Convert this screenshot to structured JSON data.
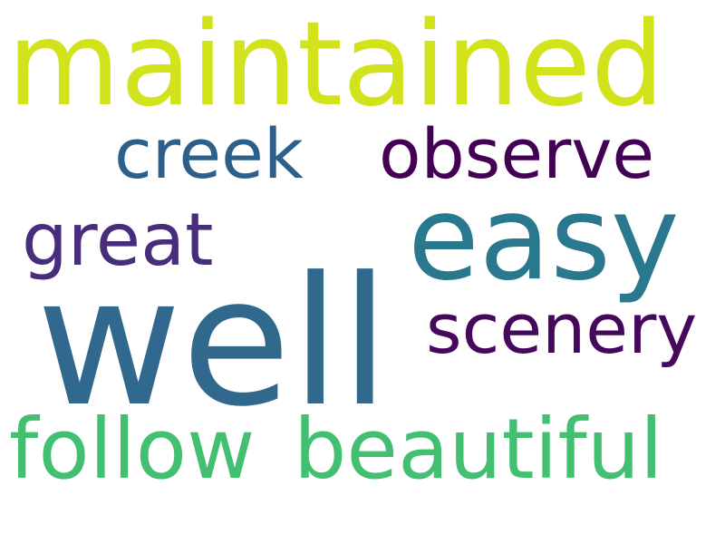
{
  "words": [
    {
      "text": "maintained",
      "color": "#d2e21b"
    },
    {
      "text": "creek",
      "color": "#2c5f8a"
    },
    {
      "text": "observe",
      "color": "#440154"
    },
    {
      "text": "great",
      "color": "#472d7b"
    },
    {
      "text": "easy",
      "color": "#2a788e"
    },
    {
      "text": "well",
      "color": "#31688e"
    },
    {
      "text": "scenery",
      "color": "#46085c"
    },
    {
      "text": "follow",
      "color": "#43bf71"
    },
    {
      "text": "beautiful",
      "color": "#43bf71"
    }
  ]
}
